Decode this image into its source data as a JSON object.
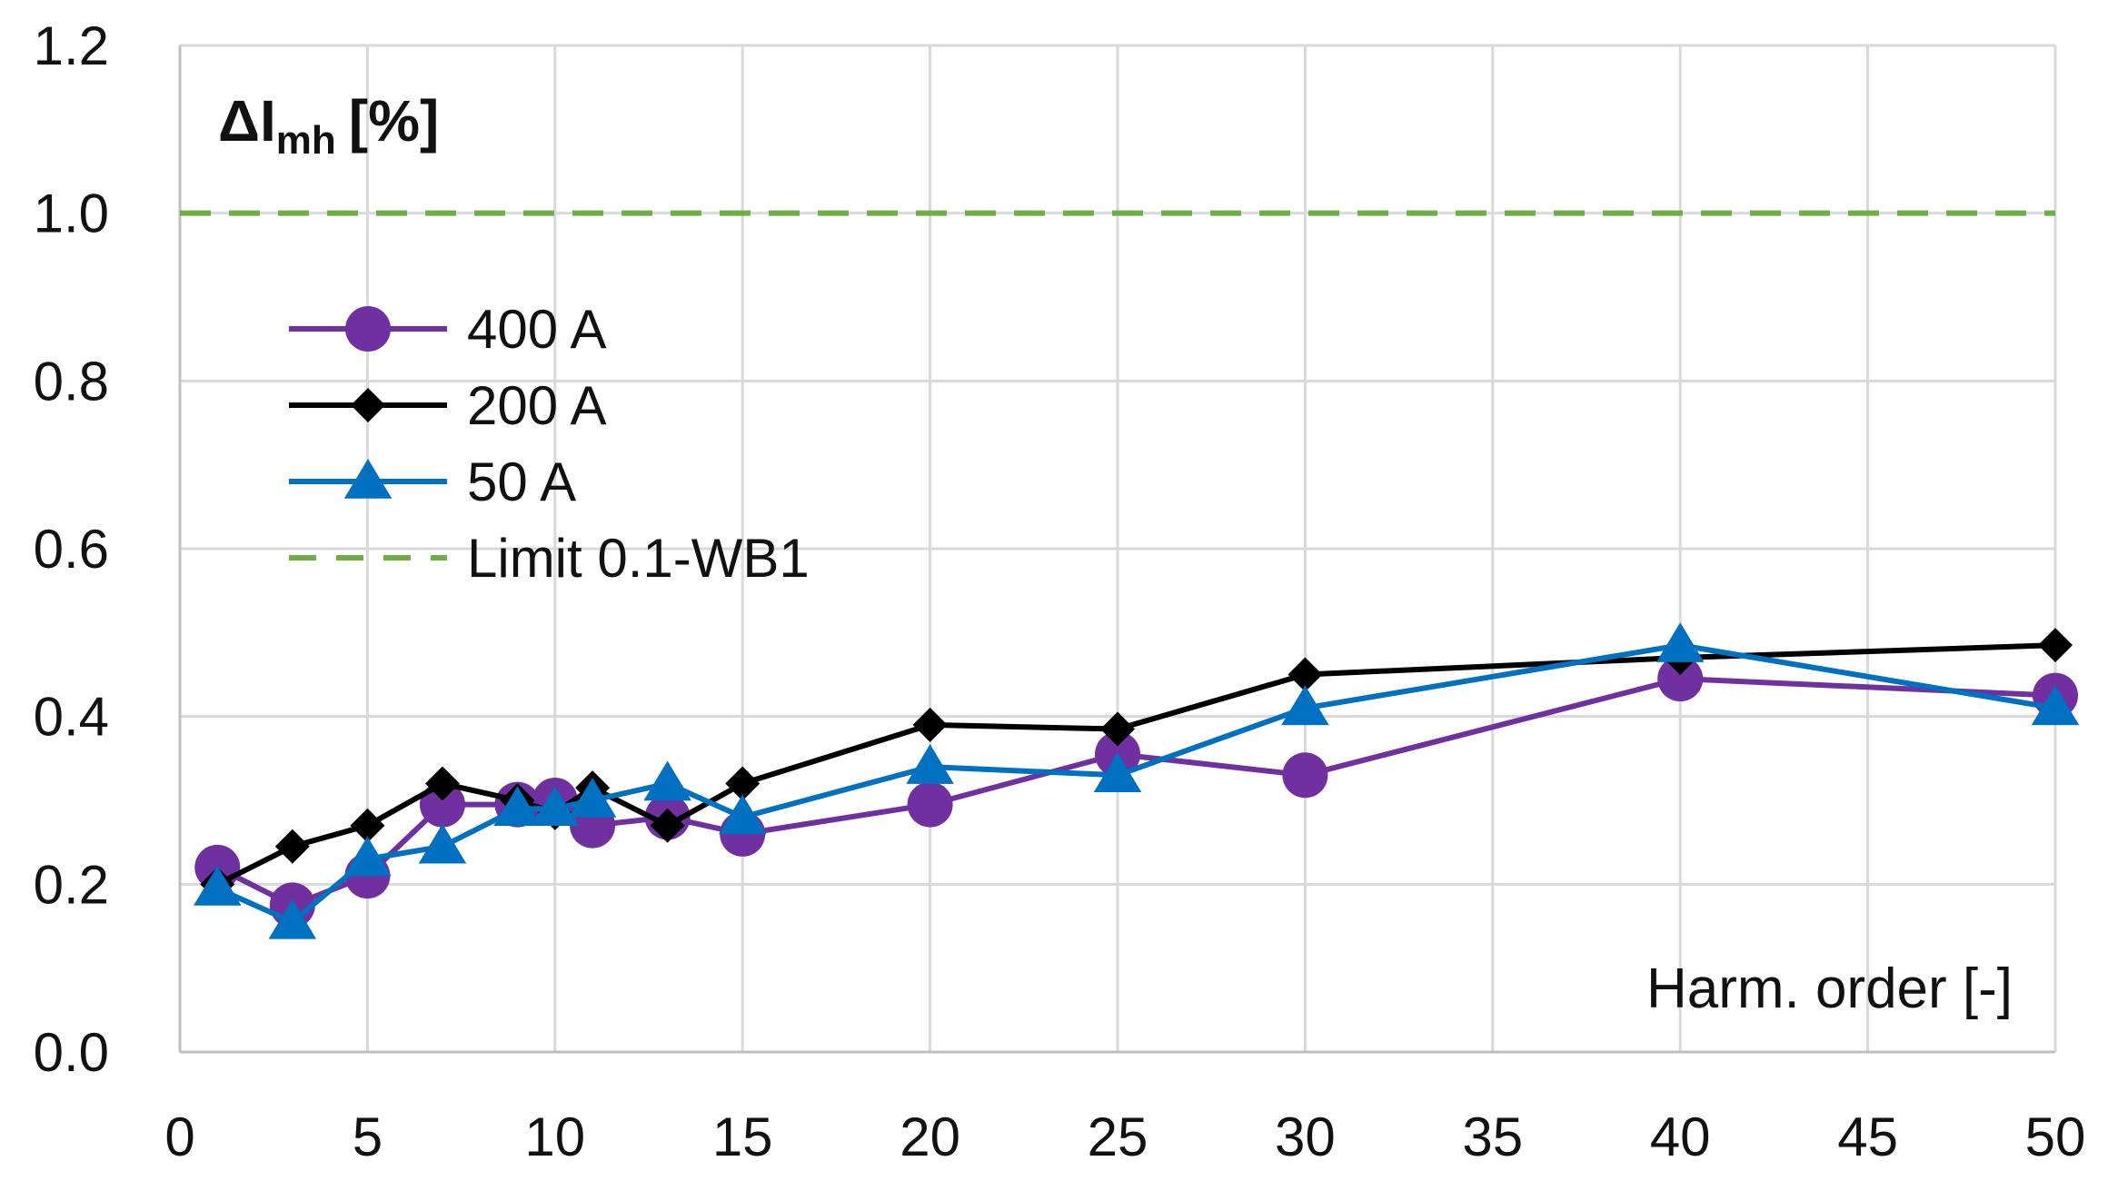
{
  "chart_data": {
    "type": "line",
    "title": "",
    "ylabel": {
      "symbol": "ΔI",
      "subscript": "mh",
      "unit": "[%]"
    },
    "xlabel": "Harm. order [-]",
    "xlim": [
      0,
      50
    ],
    "ylim": [
      0,
      1.2
    ],
    "xticks": [
      "0",
      "5",
      "10",
      "15",
      "20",
      "25",
      "30",
      "35",
      "40",
      "45",
      "50"
    ],
    "xtick_values": [
      0,
      5,
      10,
      15,
      20,
      25,
      30,
      35,
      40,
      45,
      50
    ],
    "yticks": [
      "0.0",
      "0.2",
      "0.4",
      "0.6",
      "0.8",
      "1.0",
      "1.2"
    ],
    "ytick_values": [
      0,
      0.2,
      0.4,
      0.6,
      0.8,
      1.0,
      1.2
    ],
    "grid": true,
    "legend_position": "upper-left",
    "series": [
      {
        "name": "400 A",
        "color": "#7030A0",
        "marker": "circle",
        "x": [
          1,
          3,
          5,
          7,
          9,
          10,
          11,
          13,
          15,
          20,
          25,
          30,
          40,
          50
        ],
        "y": [
          0.22,
          0.175,
          0.21,
          0.295,
          0.295,
          0.3,
          0.27,
          0.28,
          0.26,
          0.295,
          0.355,
          0.33,
          0.445,
          0.425
        ]
      },
      {
        "name": "200 A",
        "color": "#000000",
        "marker": "diamond",
        "x": [
          1,
          3,
          5,
          7,
          9,
          10,
          11,
          13,
          15,
          20,
          25,
          30,
          40,
          50
        ],
        "y": [
          0.2,
          0.245,
          0.27,
          0.32,
          0.3,
          0.285,
          0.315,
          0.27,
          0.32,
          0.39,
          0.385,
          0.45,
          0.47,
          0.485
        ]
      },
      {
        "name": "50 A",
        "color": "#0070C0",
        "marker": "triangle",
        "x": [
          1,
          3,
          5,
          7,
          9,
          10,
          11,
          13,
          15,
          20,
          25,
          30,
          40,
          50
        ],
        "y": [
          0.195,
          0.155,
          0.23,
          0.245,
          0.29,
          0.29,
          0.3,
          0.32,
          0.28,
          0.34,
          0.33,
          0.41,
          0.485,
          0.41
        ]
      }
    ],
    "limit_line": {
      "name": "Limit 0.1-WB1",
      "color": "#70AD47",
      "y": 1.0,
      "style": "dashed"
    }
  }
}
